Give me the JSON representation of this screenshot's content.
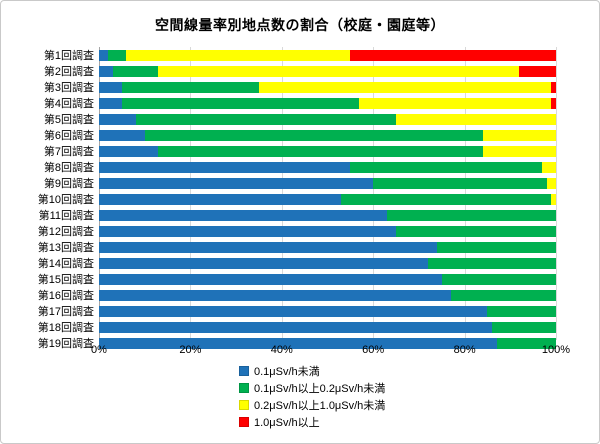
{
  "title": "空間線量率別地点数の割合（校庭・園庭等）",
  "chart_data": {
    "type": "bar",
    "orientation": "horizontal",
    "stacked": true,
    "grid": true,
    "legend_position": "bottom",
    "title": "空間線量率別地点数の割合（校庭・園庭等）",
    "xlabel": "",
    "ylabel": "",
    "xlim": [
      0,
      100
    ],
    "x_ticks": [
      "0%",
      "20%",
      "40%",
      "60%",
      "80%",
      "100%"
    ],
    "categories": [
      "第1回調査",
      "第2回調査",
      "第3回調査",
      "第4回調査",
      "第5回調査",
      "第6回調査",
      "第7回調査",
      "第8回調査",
      "第9回調査",
      "第10回調査",
      "第11回調査",
      "第12回調査",
      "第13回調査",
      "第14回調査",
      "第15回調査",
      "第16回調査",
      "第17回調査",
      "第18回調査",
      "第19回調査"
    ],
    "series": [
      {
        "name": "0.1μSv/h未満",
        "color": "#1F72B8",
        "values": [
          2,
          3,
          5,
          5,
          8,
          10,
          13,
          55,
          60,
          53,
          63,
          65,
          74,
          72,
          75,
          77,
          85,
          86,
          87
        ]
      },
      {
        "name": "0.1μSv/h以上0.2μSv/h未満",
        "color": "#00B050",
        "values": [
          4,
          10,
          30,
          52,
          57,
          74,
          71,
          42,
          38,
          46,
          37,
          35,
          26,
          28,
          25,
          23,
          15,
          14,
          13
        ]
      },
      {
        "name": "0.2μSv/h以上1.0μSv/h未満",
        "color": "#FFFF00",
        "values": [
          49,
          79,
          64,
          42,
          35,
          16,
          16,
          3,
          2,
          1,
          0,
          0,
          0,
          0,
          0,
          0,
          0,
          0,
          0
        ]
      },
      {
        "name": "1.0μSv/h以上",
        "color": "#FF0000",
        "values": [
          45,
          8,
          1,
          1,
          0,
          0,
          0,
          0,
          0,
          0,
          0,
          0,
          0,
          0,
          0,
          0,
          0,
          0,
          0
        ]
      }
    ]
  }
}
